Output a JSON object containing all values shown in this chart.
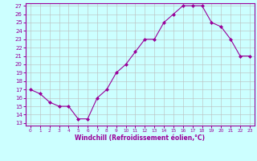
{
  "x": [
    0,
    1,
    2,
    3,
    4,
    5,
    6,
    7,
    8,
    9,
    10,
    11,
    12,
    13,
    14,
    15,
    16,
    17,
    18,
    19,
    20,
    21,
    22,
    23
  ],
  "y": [
    17,
    16.5,
    15.5,
    15,
    15,
    13.5,
    13.5,
    16,
    17,
    19,
    20,
    21.5,
    23,
    23,
    25,
    26,
    27,
    27,
    27,
    25,
    24.5,
    23,
    21,
    21
  ],
  "line_color": "#990099",
  "marker": "D",
  "marker_size": 2,
  "bg_color": "#ccffff",
  "grid_color": "#bbbbbb",
  "xlabel": "Windchill (Refroidissement éolien,°C)",
  "ylim": [
    13,
    27
  ],
  "xlim": [
    -0.5,
    23.5
  ],
  "yticks": [
    13,
    14,
    15,
    16,
    17,
    18,
    19,
    20,
    21,
    22,
    23,
    24,
    25,
    26,
    27
  ],
  "xticks": [
    0,
    1,
    2,
    3,
    4,
    5,
    6,
    7,
    8,
    9,
    10,
    11,
    12,
    13,
    14,
    15,
    16,
    17,
    18,
    19,
    20,
    21,
    22,
    23
  ],
  "tick_fontsize": 5,
  "xlabel_fontsize": 5.5,
  "spine_color": "#990099",
  "tick_color": "#990099",
  "label_color": "#990099"
}
